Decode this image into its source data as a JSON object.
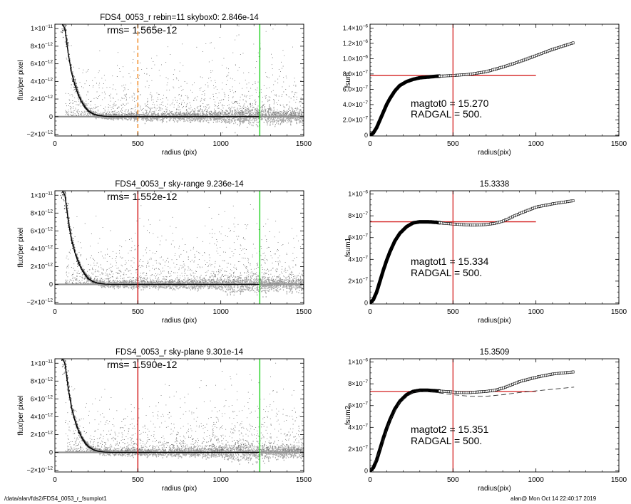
{
  "footer": {
    "path": "/data/alan/fds2/FDS4_0053_r_fsumplot1",
    "user_time": "alan@  Mon Oct 14 22:40:17 2019"
  },
  "chart_data": [
    {
      "type": "scatter",
      "title": "FDS4_0053_r rebin=11    skybox0:  2.846e-14",
      "annotation": "rms= 1.565e-12",
      "xlabel": "radius (pix)",
      "ylabel": "flux/per pixel",
      "xlim": [
        0,
        1500
      ],
      "ylim": [
        -2.2e-12,
        1.05e-11
      ],
      "xticks": [
        {
          "v": 0,
          "l": "0"
        },
        {
          "v": 500,
          "l": "500"
        },
        {
          "v": 1000,
          "l": "1000"
        },
        {
          "v": 1500,
          "l": "1500"
        }
      ],
      "yticks": [
        {
          "v": -2e-12,
          "b": "−2×10",
          "e": "−12"
        },
        {
          "v": 0,
          "b": "0",
          "e": ""
        },
        {
          "v": 2e-12,
          "b": "2×10",
          "e": "−12"
        },
        {
          "v": 4e-12,
          "b": "4×10",
          "e": "−12"
        },
        {
          "v": 6e-12,
          "b": "6×10",
          "e": "−12"
        },
        {
          "v": 8e-12,
          "b": "8×10",
          "e": "−12"
        },
        {
          "v": 1e-11,
          "b": "1×10",
          "e": "−11"
        }
      ],
      "vlines": [
        {
          "x": 500,
          "color": "#f28c28",
          "dashed": true
        },
        {
          "x": 1235,
          "color": "#2bd42b",
          "dashed": false
        }
      ],
      "profile": {
        "x": [
          30,
          60,
          80,
          100,
          120,
          140,
          160,
          180,
          200,
          230,
          260,
          300,
          350,
          400,
          1235
        ],
        "y": [
          1.1e-11,
          1e-11,
          7.2e-12,
          5e-12,
          3.6e-12,
          2.5e-12,
          1.7e-12,
          1.1e-12,
          6.5e-13,
          3e-13,
          1.2e-13,
          3e-14,
          0,
          0,
          0
        ]
      }
    },
    {
      "type": "scatter",
      "title": "FDS4_0053_r sky-range  9.236e-14",
      "annotation": "rms= 1.552e-12",
      "xlabel": "radius (pix)",
      "ylabel": "flux/per pixel",
      "xlim": [
        0,
        1500
      ],
      "ylim": [
        -2.2e-12,
        1.05e-11
      ],
      "xticks": [
        {
          "v": 0,
          "l": "0"
        },
        {
          "v": 500,
          "l": "500"
        },
        {
          "v": 1000,
          "l": "1000"
        },
        {
          "v": 1500,
          "l": "1500"
        }
      ],
      "yticks": [
        {
          "v": -2e-12,
          "b": "−2×10",
          "e": "−12"
        },
        {
          "v": 0,
          "b": "0",
          "e": ""
        },
        {
          "v": 2e-12,
          "b": "2×10",
          "e": "−12"
        },
        {
          "v": 4e-12,
          "b": "4×10",
          "e": "−12"
        },
        {
          "v": 6e-12,
          "b": "6×10",
          "e": "−12"
        },
        {
          "v": 8e-12,
          "b": "8×10",
          "e": "−12"
        },
        {
          "v": 1e-11,
          "b": "1×10",
          "e": "−11"
        }
      ],
      "vlines": [
        {
          "x": 500,
          "color": "#d42020",
          "dashed": false
        },
        {
          "x": 1235,
          "color": "#2bd42b",
          "dashed": false
        }
      ],
      "profile": {
        "x": [
          30,
          60,
          80,
          100,
          120,
          140,
          160,
          180,
          200,
          230,
          260,
          300,
          350,
          400,
          1235
        ],
        "y": [
          1.1e-11,
          1e-11,
          7.2e-12,
          5e-12,
          3.6e-12,
          2.5e-12,
          1.7e-12,
          1.1e-12,
          6.5e-13,
          3e-13,
          1.2e-13,
          3e-14,
          0,
          0,
          0
        ]
      }
    },
    {
      "type": "scatter",
      "title": "FDS4_0053_r sky-plane  9.301e-14",
      "annotation": "rms= 1.590e-12",
      "xlabel": "radius (pix)",
      "ylabel": "flux/per pixel",
      "xlim": [
        0,
        1500
      ],
      "ylim": [
        -2.2e-12,
        1.05e-11
      ],
      "xticks": [
        {
          "v": 0,
          "l": "0"
        },
        {
          "v": 500,
          "l": "500"
        },
        {
          "v": 1000,
          "l": "1000"
        },
        {
          "v": 1500,
          "l": "1500"
        }
      ],
      "yticks": [
        {
          "v": -2e-12,
          "b": "−2×10",
          "e": "−12"
        },
        {
          "v": 0,
          "b": "0",
          "e": ""
        },
        {
          "v": 2e-12,
          "b": "2×10",
          "e": "−12"
        },
        {
          "v": 4e-12,
          "b": "4×10",
          "e": "−12"
        },
        {
          "v": 6e-12,
          "b": "6×10",
          "e": "−12"
        },
        {
          "v": 8e-12,
          "b": "8×10",
          "e": "−12"
        },
        {
          "v": 1e-11,
          "b": "1×10",
          "e": "−11"
        }
      ],
      "vlines": [
        {
          "x": 500,
          "color": "#d42020",
          "dashed": false
        },
        {
          "x": 1235,
          "color": "#2bd42b",
          "dashed": false
        }
      ],
      "profile": {
        "x": [
          30,
          60,
          80,
          100,
          120,
          140,
          160,
          180,
          200,
          230,
          260,
          300,
          350,
          400,
          1235
        ],
        "y": [
          1.1e-11,
          1e-11,
          7.2e-12,
          5e-12,
          3.6e-12,
          2.5e-12,
          1.7e-12,
          1.1e-12,
          6.5e-13,
          3e-13,
          1.2e-13,
          3e-14,
          0,
          0,
          0
        ]
      }
    },
    {
      "type": "line",
      "title": "",
      "annotation_lines": [
        "magtot0 =  15.270",
        "RADGAL =    500."
      ],
      "xlabel": "radius(pix)",
      "ylabel": "fsum",
      "xlim": [
        0,
        1500
      ],
      "ylim": [
        -1e-08,
        1.45e-06
      ],
      "xticks": [
        {
          "v": 0,
          "l": "0"
        },
        {
          "v": 500,
          "l": "500"
        },
        {
          "v": 1000,
          "l": "1000"
        },
        {
          "v": 1500,
          "l": "1500"
        }
      ],
      "yticks": [
        {
          "v": 0,
          "b": "0",
          "e": ""
        },
        {
          "v": 2e-07,
          "b": "2.0×10",
          "e": "−7"
        },
        {
          "v": 4e-07,
          "b": "4.0×10",
          "e": "−7"
        },
        {
          "v": 6e-07,
          "b": "6.0×10",
          "e": "−7"
        },
        {
          "v": 8e-07,
          "b": "8.0×10",
          "e": "−7"
        },
        {
          "v": 1e-06,
          "b": "1.0×10",
          "e": "−6"
        },
        {
          "v": 1.2e-06,
          "b": "1.2×10",
          "e": "−6"
        },
        {
          "v": 1.4e-06,
          "b": "1.4×10",
          "e": "−6"
        }
      ],
      "vline_x": 500,
      "hline": {
        "y": 7.8e-07,
        "x0": 0,
        "x1": 1000
      },
      "curve": {
        "x": [
          0,
          20,
          40,
          60,
          80,
          100,
          120,
          150,
          180,
          220,
          260,
          300,
          350,
          400,
          450,
          500,
          600,
          700,
          800,
          900,
          1000,
          1100,
          1230
        ],
        "y": [
          0,
          3e-08,
          1e-07,
          2e-07,
          3e-07,
          4e-07,
          4.8e-07,
          5.8e-07,
          6.5e-07,
          7e-07,
          7.3e-07,
          7.5e-07,
          7.6e-07,
          7.7e-07,
          7.75e-07,
          7.8e-07,
          7.95e-07,
          8.3e-07,
          8.9e-07,
          9.6e-07,
          1.04e-06,
          1.12e-06,
          1.21e-06
        ]
      },
      "marker_from_x": 420
    },
    {
      "type": "line",
      "title": "15.3338",
      "annotation_lines": [
        "magtot1 =  15.334",
        "RADGAL =    500."
      ],
      "xlabel": "radius(pix)",
      "ylabel": "fsum1",
      "xlim": [
        0,
        1500
      ],
      "ylim": [
        -1e-08,
        1.03e-06
      ],
      "xticks": [
        {
          "v": 0,
          "l": "0"
        },
        {
          "v": 500,
          "l": "500"
        },
        {
          "v": 1000,
          "l": "1000"
        },
        {
          "v": 1500,
          "l": "1500"
        }
      ],
      "yticks": [
        {
          "v": 0,
          "b": "0",
          "e": ""
        },
        {
          "v": 2e-07,
          "b": "2×10",
          "e": "−7"
        },
        {
          "v": 4e-07,
          "b": "4×10",
          "e": "−7"
        },
        {
          "v": 6e-07,
          "b": "6×10",
          "e": "−7"
        },
        {
          "v": 8e-07,
          "b": "8×10",
          "e": "−7"
        },
        {
          "v": 1e-06,
          "b": "1×10",
          "e": "−6"
        }
      ],
      "vline_x": 500,
      "hline": {
        "y": 7.45e-07,
        "x0": 0,
        "x1": 1000
      },
      "curve": {
        "x": [
          0,
          20,
          40,
          60,
          80,
          100,
          120,
          150,
          180,
          220,
          260,
          300,
          350,
          400,
          450,
          500,
          550,
          600,
          650,
          700,
          750,
          800,
          900,
          1000,
          1100,
          1230
        ],
        "y": [
          0,
          3e-08,
          1e-07,
          2e-07,
          3e-07,
          3.9e-07,
          4.7e-07,
          5.7e-07,
          6.4e-07,
          7e-07,
          7.35e-07,
          7.45e-07,
          7.45e-07,
          7.4e-07,
          7.3e-07,
          7.25e-07,
          7.2e-07,
          7.15e-07,
          7.15e-07,
          7.2e-07,
          7.3e-07,
          7.5e-07,
          8.2e-07,
          8.8e-07,
          9.1e-07,
          9.4e-07
        ]
      },
      "marker_from_x": 420
    },
    {
      "type": "line",
      "title": "15.3509",
      "annotation_lines": [
        "magtot2 =  15.351",
        "RADGAL =    500."
      ],
      "xlabel": "radius(pix)",
      "ylabel": "fsum2",
      "xlim": [
        0,
        1500
      ],
      "ylim": [
        -1e-08,
        1.03e-06
      ],
      "xticks": [
        {
          "v": 0,
          "l": "0"
        },
        {
          "v": 500,
          "l": "500"
        },
        {
          "v": 1000,
          "l": "1000"
        },
        {
          "v": 1500,
          "l": "1500"
        }
      ],
      "yticks": [
        {
          "v": 0,
          "b": "0",
          "e": ""
        },
        {
          "v": 2e-07,
          "b": "2×10",
          "e": "−7"
        },
        {
          "v": 4e-07,
          "b": "4×10",
          "e": "−7"
        },
        {
          "v": 6e-07,
          "b": "6×10",
          "e": "−7"
        },
        {
          "v": 8e-07,
          "b": "8×10",
          "e": "−7"
        },
        {
          "v": 1e-06,
          "b": "1×10",
          "e": "−6"
        }
      ],
      "vline_x": 500,
      "hline": {
        "y": 7.3e-07,
        "x0": 0,
        "x1": 1000
      },
      "curve": {
        "x": [
          0,
          20,
          40,
          60,
          80,
          100,
          120,
          150,
          180,
          220,
          260,
          300,
          350,
          400,
          450,
          500,
          550,
          600,
          650,
          700,
          750,
          800,
          900,
          1000,
          1100,
          1230
        ],
        "y": [
          0,
          3e-08,
          1e-07,
          2e-07,
          3e-07,
          3.9e-07,
          4.7e-07,
          5.7e-07,
          6.4e-07,
          7e-07,
          7.3e-07,
          7.4e-07,
          7.4e-07,
          7.35e-07,
          7.3e-07,
          7.25e-07,
          7.2e-07,
          7.2e-07,
          7.25e-07,
          7.3e-07,
          7.4e-07,
          7.6e-07,
          8.2e-07,
          8.6e-07,
          8.9e-07,
          9.1e-07
        ]
      },
      "dashed_curve": {
        "x": [
          0,
          60,
          120,
          180,
          260,
          300,
          350,
          400,
          500,
          600,
          700,
          800,
          900,
          1000,
          1100,
          1230
        ],
        "y": [
          0,
          1.9e-07,
          4.6e-07,
          6.3e-07,
          7.25e-07,
          7.35e-07,
          7.3e-07,
          7.2e-07,
          7e-07,
          6.85e-07,
          6.85e-07,
          7e-07,
          7.2e-07,
          7.35e-07,
          7.5e-07,
          7.7e-07
        ]
      },
      "marker_from_x": 420
    }
  ]
}
